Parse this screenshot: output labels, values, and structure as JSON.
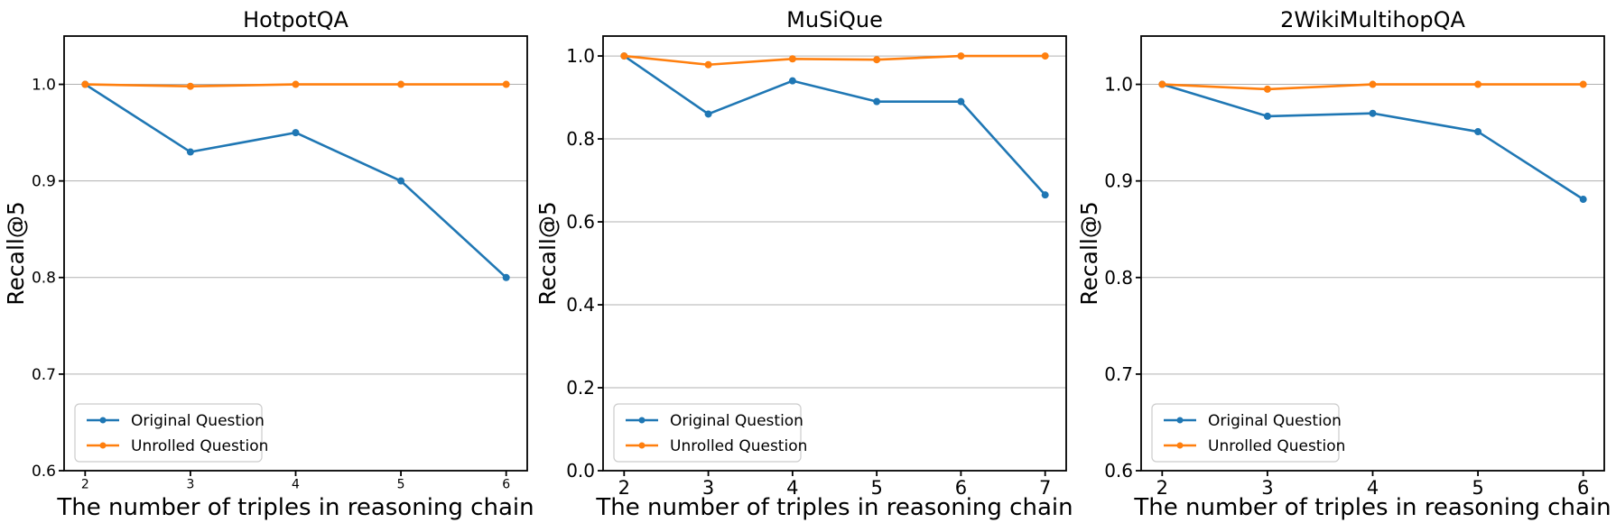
{
  "figure": {
    "background": "#ffffff",
    "grid_color": "#b0b0b0",
    "spine_color": "#000000",
    "legend_border_color": "#cccccc"
  },
  "chart_data": [
    {
      "type": "line",
      "title": "HotpotQA",
      "xlabel": "The number of triples in reasoning chain",
      "ylabel": "Recall@5",
      "x": [
        2,
        3,
        4,
        5,
        6
      ],
      "xlim": [
        1.8,
        6.2
      ],
      "ylim": [
        0.6,
        1.05
      ],
      "yticks": [
        0.6,
        0.7,
        0.8,
        0.9,
        1.0
      ],
      "grid": "horizontal",
      "legend_position": "lower-left",
      "series": [
        {
          "name": "Original Question",
          "color": "#1f77b4",
          "values": [
            1.0,
            0.93,
            0.95,
            0.9,
            0.8
          ]
        },
        {
          "name": "Unrolled Question",
          "color": "#ff7f0e",
          "values": [
            1.0,
            0.998,
            1.0,
            1.0,
            1.0
          ]
        }
      ]
    },
    {
      "type": "line",
      "title": "MuSiQue",
      "xlabel": "The number of triples in reasoning chain",
      "ylabel": "Recall@5",
      "x": [
        2,
        3,
        4,
        5,
        6,
        7
      ],
      "xlim": [
        1.75,
        7.25
      ],
      "ylim": [
        0.0,
        1.048
      ],
      "yticks": [
        0.0,
        0.2,
        0.4,
        0.6,
        0.8,
        1.0
      ],
      "grid": "horizontal",
      "legend_position": "lower-left",
      "series": [
        {
          "name": "Original Question",
          "color": "#1f77b4",
          "values": [
            1.0,
            0.86,
            0.94,
            0.89,
            0.89,
            0.665
          ]
        },
        {
          "name": "Unrolled Question",
          "color": "#ff7f0e",
          "values": [
            1.0,
            0.979,
            0.993,
            0.991,
            1.0,
            1.0
          ]
        }
      ]
    },
    {
      "type": "line",
      "title": "2WikiMultihopQA",
      "xlabel": "The number of triples in reasoning chain",
      "ylabel": "Recall@5",
      "x": [
        2,
        3,
        4,
        5,
        6
      ],
      "xlim": [
        1.8,
        6.2
      ],
      "ylim": [
        0.6,
        1.05
      ],
      "yticks": [
        0.6,
        0.7,
        0.8,
        0.9,
        1.0
      ],
      "grid": "horizontal",
      "legend_position": "lower-left",
      "series": [
        {
          "name": "Original Question",
          "color": "#1f77b4",
          "values": [
            1.0,
            0.967,
            0.97,
            0.951,
            0.881
          ]
        },
        {
          "name": "Unrolled Question",
          "color": "#ff7f0e",
          "values": [
            1.0,
            0.995,
            1.0,
            1.0,
            1.0
          ]
        }
      ]
    }
  ]
}
